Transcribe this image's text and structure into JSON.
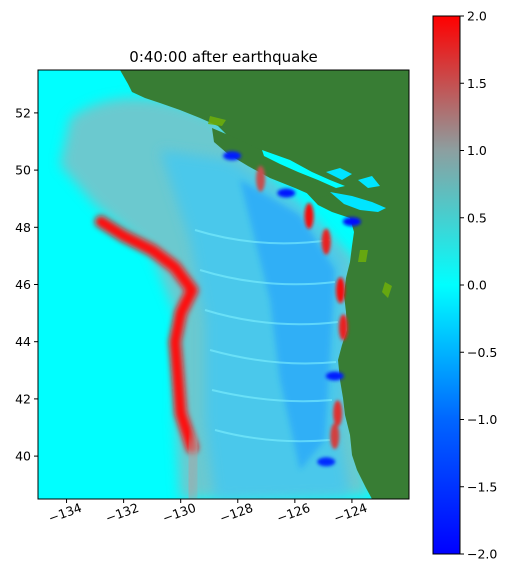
{
  "chart_data": [
    {
      "type": "heatmap",
      "title": "0:40:00 after earthquake",
      "xlabel": "",
      "ylabel": "",
      "xlim": [
        -135.0,
        -122.0
      ],
      "ylim": [
        38.5,
        53.5
      ],
      "x_ticks": [
        -134,
        -132,
        -130,
        -128,
        -126,
        -124
      ],
      "x_tick_labels": [
        "−134",
        "−132",
        "−130",
        "−128",
        "−126",
        "−124"
      ],
      "y_ticks": [
        40,
        42,
        44,
        46,
        48,
        50,
        52
      ],
      "y_tick_labels": [
        "40",
        "42",
        "44",
        "46",
        "48",
        "50",
        "52"
      ],
      "colormap_range": [
        -2.0,
        2.0
      ],
      "land_color": "#387d34",
      "background_sea_color": "#00ffff",
      "features": {
        "wave_front": [
          [
            -129.6,
            40.3
          ],
          [
            -130.0,
            41.5
          ],
          [
            -130.1,
            42.8
          ],
          [
            -130.2,
            44.0
          ],
          [
            -130.0,
            45.0
          ],
          [
            -129.6,
            45.8
          ],
          [
            -130.2,
            46.6
          ],
          [
            -131.0,
            47.2
          ],
          [
            -132.0,
            47.7
          ],
          [
            -132.8,
            48.2
          ]
        ],
        "coast_peaks": [
          {
            "lon": -124.4,
            "lat": 45.8,
            "value": 1.9
          },
          {
            "lon": -124.3,
            "lat": 44.5,
            "value": 1.8
          },
          {
            "lon": -124.5,
            "lat": 41.5,
            "value": 1.7
          },
          {
            "lon": -124.6,
            "lat": 40.7,
            "value": 1.6
          },
          {
            "lon": -124.9,
            "lat": 47.5,
            "value": 1.8
          },
          {
            "lon": -125.5,
            "lat": 48.4,
            "value": 1.9
          },
          {
            "lon": -127.2,
            "lat": 49.7,
            "value": 1.5
          }
        ],
        "coast_troughs": [
          {
            "lon": -126.3,
            "lat": 49.2,
            "value": -1.8
          },
          {
            "lon": -124.0,
            "lat": 48.2,
            "value": -1.9
          },
          {
            "lon": -124.6,
            "lat": 42.8,
            "value": -1.7
          },
          {
            "lon": -124.9,
            "lat": 39.8,
            "value": -1.6
          },
          {
            "lon": -128.2,
            "lat": 50.5,
            "value": -1.7
          }
        ]
      }
    },
    {
      "type": "colorbar",
      "ticks": [
        -2.0,
        -1.5,
        -1.0,
        -0.5,
        0.0,
        0.5,
        1.0,
        1.5,
        2.0
      ],
      "tick_labels": [
        "−2.0",
        "−1.5",
        "−1.0",
        "−0.5",
        "0.0",
        "0.5",
        "1.0",
        "1.5",
        "2.0"
      ],
      "color_stops": [
        {
          "value": -2.0,
          "color": "#0000ff"
        },
        {
          "value": -1.0,
          "color": "#0066ff"
        },
        {
          "value": 0.0,
          "color": "#00ffff"
        },
        {
          "value": 1.0,
          "color": "#8c9fa0"
        },
        {
          "value": 2.0,
          "color": "#ff0000"
        }
      ]
    }
  ]
}
